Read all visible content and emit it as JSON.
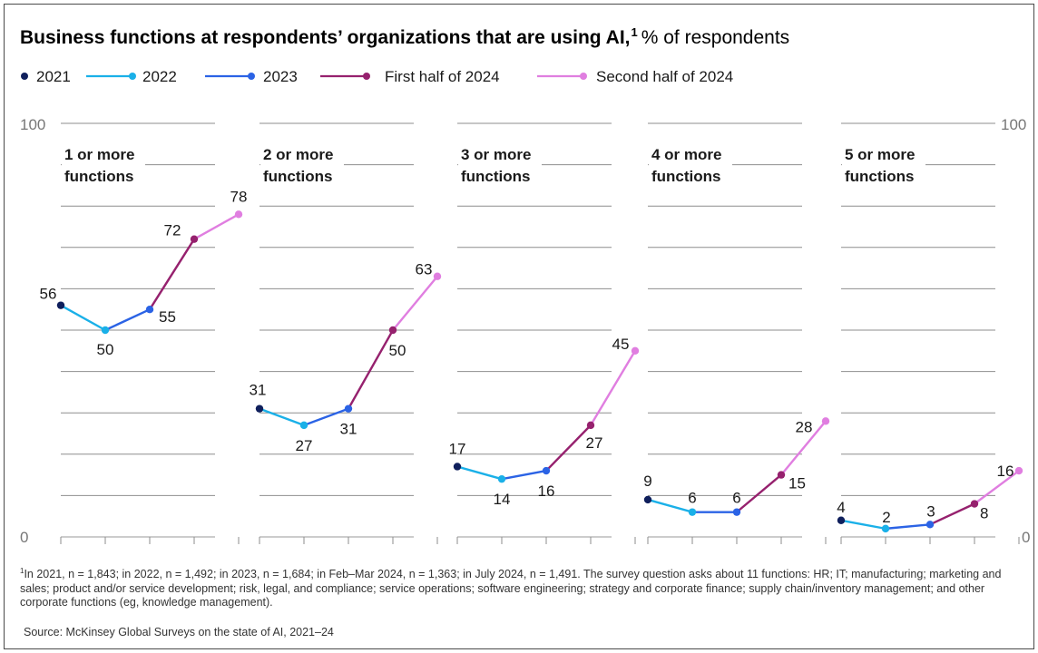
{
  "title": {
    "main": "Business functions at respondents’ organizations that are using AI,",
    "superscript": "1",
    "subtitle": "% of respondents"
  },
  "chart_data": {
    "type": "line",
    "series_names": [
      "2021",
      "2022",
      "2023",
      "First half of 2024",
      "Second half of 2024"
    ],
    "colors": [
      "#0f1f5c",
      "#1ab0e8",
      "#2b63e5",
      "#96216e",
      "#e07ee0"
    ],
    "ylim": [
      0,
      100
    ],
    "y_tick_labels": [
      "100",
      "0"
    ],
    "grid": true,
    "legend_position": "top-left",
    "panels": [
      {
        "label_line1": "1 or more",
        "label_line2": "functions",
        "values": [
          56,
          50,
          55,
          72,
          78
        ]
      },
      {
        "label_line1": "2 or more",
        "label_line2": "functions",
        "values": [
          31,
          27,
          31,
          50,
          63
        ]
      },
      {
        "label_line1": "3 or more",
        "label_line2": "functions",
        "values": [
          17,
          14,
          16,
          27,
          45
        ]
      },
      {
        "label_line1": "4 or more",
        "label_line2": "functions",
        "values": [
          9,
          6,
          6,
          15,
          28
        ]
      },
      {
        "label_line1": "5 or more",
        "label_line2": "functions",
        "values": [
          4,
          2,
          3,
          8,
          16
        ]
      }
    ]
  },
  "footnote": {
    "marker": "1",
    "text": "In 2021, n = 1,843; in 2022, n = 1,492; in 2023, n = 1,684; in Feb–Mar 2024, n = 1,363; in July 2024, n = 1,491. The survey question asks about 11 functions: HR; IT; manufacturing; marketing and sales; product and/or service development; risk, legal, and compliance; service operations; software engineering; strategy and corporate finance; supply chain/inventory management; and other corporate functions (eg, knowledge management)."
  },
  "source": "Source: McKinsey Global Surveys on the state of AI, 2021–24"
}
